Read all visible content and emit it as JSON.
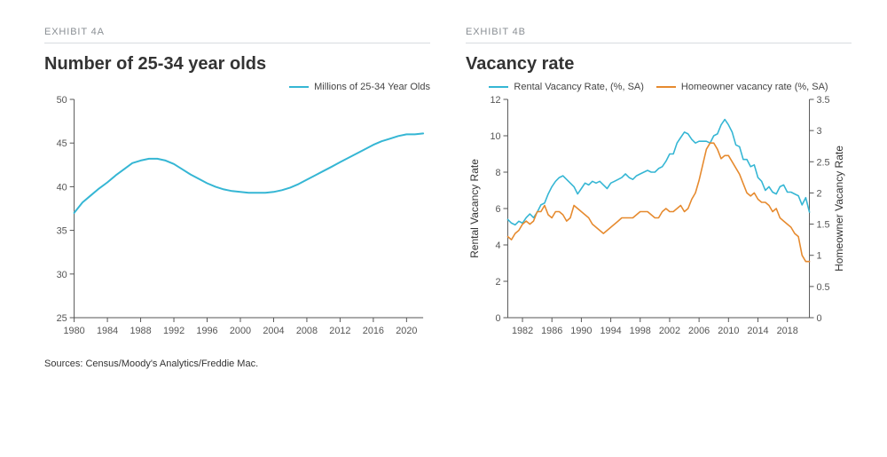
{
  "chart_a": {
    "exhibit_label": "EXHIBIT 4A",
    "title": "Number of 25-34 year olds",
    "type": "line",
    "legend": [
      {
        "label": "Millions of 25-34 Year Olds",
        "color": "#35b6d4"
      }
    ],
    "x": {
      "min": 1980,
      "max": 2022,
      "ticks": [
        1980,
        1984,
        1988,
        1992,
        1996,
        2000,
        2004,
        2008,
        2012,
        2016,
        2020
      ]
    },
    "y": {
      "min": 25,
      "max": 50,
      "ticks": [
        25,
        30,
        35,
        40,
        45,
        50
      ]
    },
    "series": [
      {
        "color": "#35b6d4",
        "width": 2,
        "points": [
          [
            1980,
            37.0
          ],
          [
            1981,
            38.2
          ],
          [
            1982,
            39.0
          ],
          [
            1983,
            39.8
          ],
          [
            1984,
            40.5
          ],
          [
            1985,
            41.3
          ],
          [
            1986,
            42.0
          ],
          [
            1987,
            42.7
          ],
          [
            1988,
            43.0
          ],
          [
            1989,
            43.2
          ],
          [
            1990,
            43.2
          ],
          [
            1991,
            43.0
          ],
          [
            1992,
            42.6
          ],
          [
            1993,
            42.0
          ],
          [
            1994,
            41.4
          ],
          [
            1995,
            40.9
          ],
          [
            1996,
            40.4
          ],
          [
            1997,
            40.0
          ],
          [
            1998,
            39.7
          ],
          [
            1999,
            39.5
          ],
          [
            2000,
            39.4
          ],
          [
            2001,
            39.3
          ],
          [
            2002,
            39.3
          ],
          [
            2003,
            39.3
          ],
          [
            2004,
            39.4
          ],
          [
            2005,
            39.6
          ],
          [
            2006,
            39.9
          ],
          [
            2007,
            40.3
          ],
          [
            2008,
            40.8
          ],
          [
            2009,
            41.3
          ],
          [
            2010,
            41.8
          ],
          [
            2011,
            42.3
          ],
          [
            2012,
            42.8
          ],
          [
            2013,
            43.3
          ],
          [
            2014,
            43.8
          ],
          [
            2015,
            44.3
          ],
          [
            2016,
            44.8
          ],
          [
            2017,
            45.2
          ],
          [
            2018,
            45.5
          ],
          [
            2019,
            45.8
          ],
          [
            2020,
            46.0
          ],
          [
            2021,
            46.0
          ],
          [
            2022,
            46.1
          ]
        ]
      }
    ],
    "background_color": "#ffffff",
    "axis_color": "#555555",
    "tick_font_size": 11
  },
  "chart_b": {
    "exhibit_label": "EXHIBIT 4B",
    "title": "Vacancy rate",
    "type": "line-dual-axis",
    "legend": [
      {
        "label": "Rental Vacancy Rate, (%, SA)",
        "color": "#35b6d4"
      },
      {
        "label": "Homeowner vacancy rate  (%, SA)",
        "color": "#e68a2e"
      }
    ],
    "x": {
      "min": 1980,
      "max": 2021,
      "ticks": [
        1982,
        1986,
        1990,
        1994,
        1998,
        2002,
        2006,
        2010,
        2014,
        2018
      ]
    },
    "y_left": {
      "title": "Rental Vacancy Rate",
      "min": 0,
      "max": 12,
      "ticks": [
        0,
        2,
        4,
        6,
        8,
        10,
        12
      ]
    },
    "y_right": {
      "title": "Homeowner Vacancy Rate",
      "min": 0,
      "max": 3.5,
      "ticks": [
        0,
        0.5,
        1.0,
        1.5,
        2.0,
        2.5,
        3.0,
        3.5
      ]
    },
    "series": [
      {
        "axis": "left",
        "color": "#35b6d4",
        "width": 1.6,
        "points": [
          [
            1980,
            5.4
          ],
          [
            1980.5,
            5.2
          ],
          [
            1981,
            5.1
          ],
          [
            1981.5,
            5.3
          ],
          [
            1982,
            5.2
          ],
          [
            1982.5,
            5.5
          ],
          [
            1983,
            5.7
          ],
          [
            1983.5,
            5.5
          ],
          [
            1984,
            5.8
          ],
          [
            1984.5,
            6.2
          ],
          [
            1985,
            6.3
          ],
          [
            1985.5,
            6.8
          ],
          [
            1986,
            7.2
          ],
          [
            1986.5,
            7.5
          ],
          [
            1987,
            7.7
          ],
          [
            1987.5,
            7.8
          ],
          [
            1988,
            7.6
          ],
          [
            1988.5,
            7.4
          ],
          [
            1989,
            7.2
          ],
          [
            1989.5,
            6.8
          ],
          [
            1990,
            7.1
          ],
          [
            1990.5,
            7.4
          ],
          [
            1991,
            7.3
          ],
          [
            1991.5,
            7.5
          ],
          [
            1992,
            7.4
          ],
          [
            1992.5,
            7.5
          ],
          [
            1993,
            7.3
          ],
          [
            1993.5,
            7.1
          ],
          [
            1994,
            7.4
          ],
          [
            1994.5,
            7.5
          ],
          [
            1995,
            7.6
          ],
          [
            1995.5,
            7.7
          ],
          [
            1996,
            7.9
          ],
          [
            1996.5,
            7.7
          ],
          [
            1997,
            7.6
          ],
          [
            1997.5,
            7.8
          ],
          [
            1998,
            7.9
          ],
          [
            1998.5,
            8.0
          ],
          [
            1999,
            8.1
          ],
          [
            1999.5,
            8.0
          ],
          [
            2000,
            8.0
          ],
          [
            2000.5,
            8.2
          ],
          [
            2001,
            8.3
          ],
          [
            2001.5,
            8.6
          ],
          [
            2002,
            9.0
          ],
          [
            2002.5,
            9.0
          ],
          [
            2003,
            9.6
          ],
          [
            2003.5,
            9.9
          ],
          [
            2004,
            10.2
          ],
          [
            2004.5,
            10.1
          ],
          [
            2005,
            9.8
          ],
          [
            2005.5,
            9.6
          ],
          [
            2006,
            9.7
          ],
          [
            2006.5,
            9.7
          ],
          [
            2007,
            9.7
          ],
          [
            2007.5,
            9.6
          ],
          [
            2008,
            10.0
          ],
          [
            2008.5,
            10.1
          ],
          [
            2009,
            10.6
          ],
          [
            2009.5,
            10.9
          ],
          [
            2010,
            10.6
          ],
          [
            2010.5,
            10.2
          ],
          [
            2011,
            9.5
          ],
          [
            2011.5,
            9.4
          ],
          [
            2012,
            8.7
          ],
          [
            2012.5,
            8.7
          ],
          [
            2013,
            8.3
          ],
          [
            2013.5,
            8.4
          ],
          [
            2014,
            7.7
          ],
          [
            2014.5,
            7.5
          ],
          [
            2015,
            7.0
          ],
          [
            2015.5,
            7.2
          ],
          [
            2016,
            6.9
          ],
          [
            2016.5,
            6.8
          ],
          [
            2017,
            7.2
          ],
          [
            2017.5,
            7.3
          ],
          [
            2018,
            6.9
          ],
          [
            2018.5,
            6.9
          ],
          [
            2019,
            6.8
          ],
          [
            2019.5,
            6.7
          ],
          [
            2020,
            6.2
          ],
          [
            2020.5,
            6.6
          ],
          [
            2021,
            5.8
          ]
        ]
      },
      {
        "axis": "right",
        "color": "#e68a2e",
        "width": 1.6,
        "points": [
          [
            1980,
            1.3
          ],
          [
            1980.5,
            1.25
          ],
          [
            1981,
            1.35
          ],
          [
            1981.5,
            1.4
          ],
          [
            1982,
            1.5
          ],
          [
            1982.5,
            1.55
          ],
          [
            1983,
            1.5
          ],
          [
            1983.5,
            1.55
          ],
          [
            1984,
            1.7
          ],
          [
            1984.5,
            1.7
          ],
          [
            1985,
            1.8
          ],
          [
            1985.5,
            1.65
          ],
          [
            1986,
            1.6
          ],
          [
            1986.5,
            1.7
          ],
          [
            1987,
            1.7
          ],
          [
            1987.5,
            1.65
          ],
          [
            1988,
            1.55
          ],
          [
            1988.5,
            1.6
          ],
          [
            1989,
            1.8
          ],
          [
            1989.5,
            1.75
          ],
          [
            1990,
            1.7
          ],
          [
            1990.5,
            1.65
          ],
          [
            1991,
            1.6
          ],
          [
            1991.5,
            1.5
          ],
          [
            1992,
            1.45
          ],
          [
            1992.5,
            1.4
          ],
          [
            1993,
            1.35
          ],
          [
            1993.5,
            1.4
          ],
          [
            1994,
            1.45
          ],
          [
            1994.5,
            1.5
          ],
          [
            1995,
            1.55
          ],
          [
            1995.5,
            1.6
          ],
          [
            1996,
            1.6
          ],
          [
            1996.5,
            1.6
          ],
          [
            1997,
            1.6
          ],
          [
            1997.5,
            1.65
          ],
          [
            1998,
            1.7
          ],
          [
            1998.5,
            1.7
          ],
          [
            1999,
            1.7
          ],
          [
            1999.5,
            1.65
          ],
          [
            2000,
            1.6
          ],
          [
            2000.5,
            1.6
          ],
          [
            2001,
            1.7
          ],
          [
            2001.5,
            1.75
          ],
          [
            2002,
            1.7
          ],
          [
            2002.5,
            1.7
          ],
          [
            2003,
            1.75
          ],
          [
            2003.5,
            1.8
          ],
          [
            2004,
            1.7
          ],
          [
            2004.5,
            1.75
          ],
          [
            2005,
            1.9
          ],
          [
            2005.5,
            2.0
          ],
          [
            2006,
            2.2
          ],
          [
            2006.5,
            2.45
          ],
          [
            2007,
            2.7
          ],
          [
            2007.5,
            2.8
          ],
          [
            2008,
            2.8
          ],
          [
            2008.5,
            2.7
          ],
          [
            2009,
            2.55
          ],
          [
            2009.5,
            2.6
          ],
          [
            2010,
            2.6
          ],
          [
            2010.5,
            2.5
          ],
          [
            2011,
            2.4
          ],
          [
            2011.5,
            2.3
          ],
          [
            2012,
            2.15
          ],
          [
            2012.5,
            2.0
          ],
          [
            2013,
            1.95
          ],
          [
            2013.5,
            2.0
          ],
          [
            2014,
            1.9
          ],
          [
            2014.5,
            1.85
          ],
          [
            2015,
            1.85
          ],
          [
            2015.5,
            1.8
          ],
          [
            2016,
            1.7
          ],
          [
            2016.5,
            1.75
          ],
          [
            2017,
            1.6
          ],
          [
            2017.5,
            1.55
          ],
          [
            2018,
            1.5
          ],
          [
            2018.5,
            1.45
          ],
          [
            2019,
            1.35
          ],
          [
            2019.5,
            1.3
          ],
          [
            2020,
            1.0
          ],
          [
            2020.5,
            0.9
          ],
          [
            2021,
            0.9
          ]
        ]
      }
    ],
    "background_color": "#ffffff",
    "axis_color": "#555555",
    "tick_font_size": 11,
    "axis_title_font_size": 12
  },
  "sources_text": "Sources: Census/Moody's Analytics/Freddie Mac.",
  "colors": {
    "title_rule": "#d8dcdf",
    "exhibit_label": "#8a8f94",
    "title_text": "#333333"
  }
}
